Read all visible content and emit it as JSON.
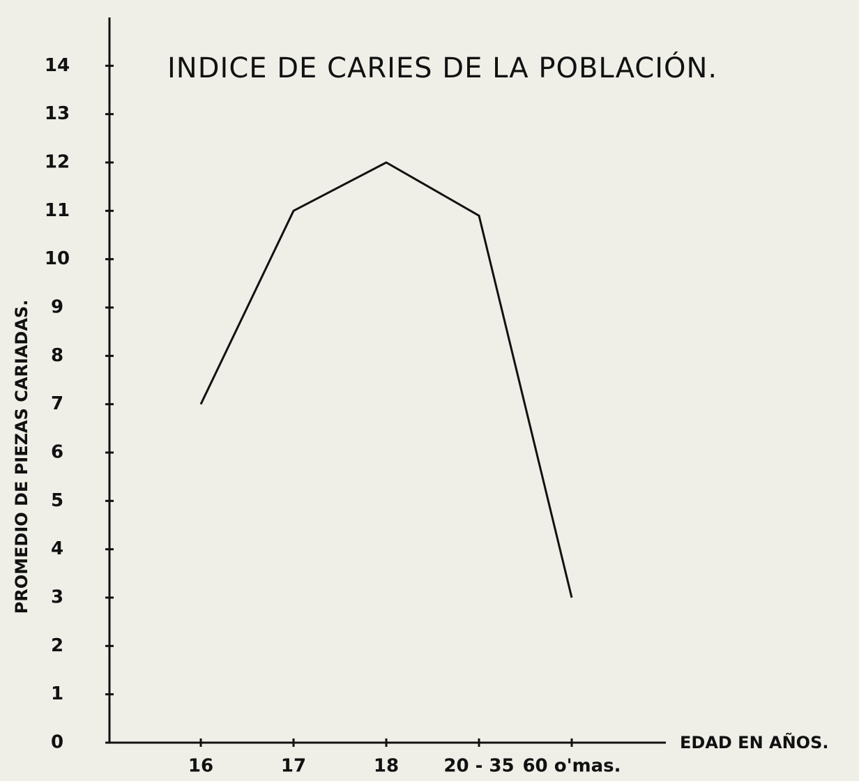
{
  "chart_data": {
    "type": "line",
    "title": "INDICE DE CARIES DE LA POBLACIÓN.",
    "y_label": "PROMEDIO DE PIEZAS CARIADAS.",
    "x_label": "EDAD EN AÑOS.",
    "categories": [
      "16",
      "17",
      "18",
      "20 - 35",
      "60 o'mas."
    ],
    "values": [
      7,
      11,
      12,
      10.9,
      3
    ],
    "color": "#111111",
    "ylim": [
      0,
      15
    ],
    "yticks": [
      0,
      1,
      2,
      3,
      4,
      5,
      6,
      7,
      8,
      9,
      10,
      11,
      12,
      13,
      14
    ],
    "grid": false
  }
}
